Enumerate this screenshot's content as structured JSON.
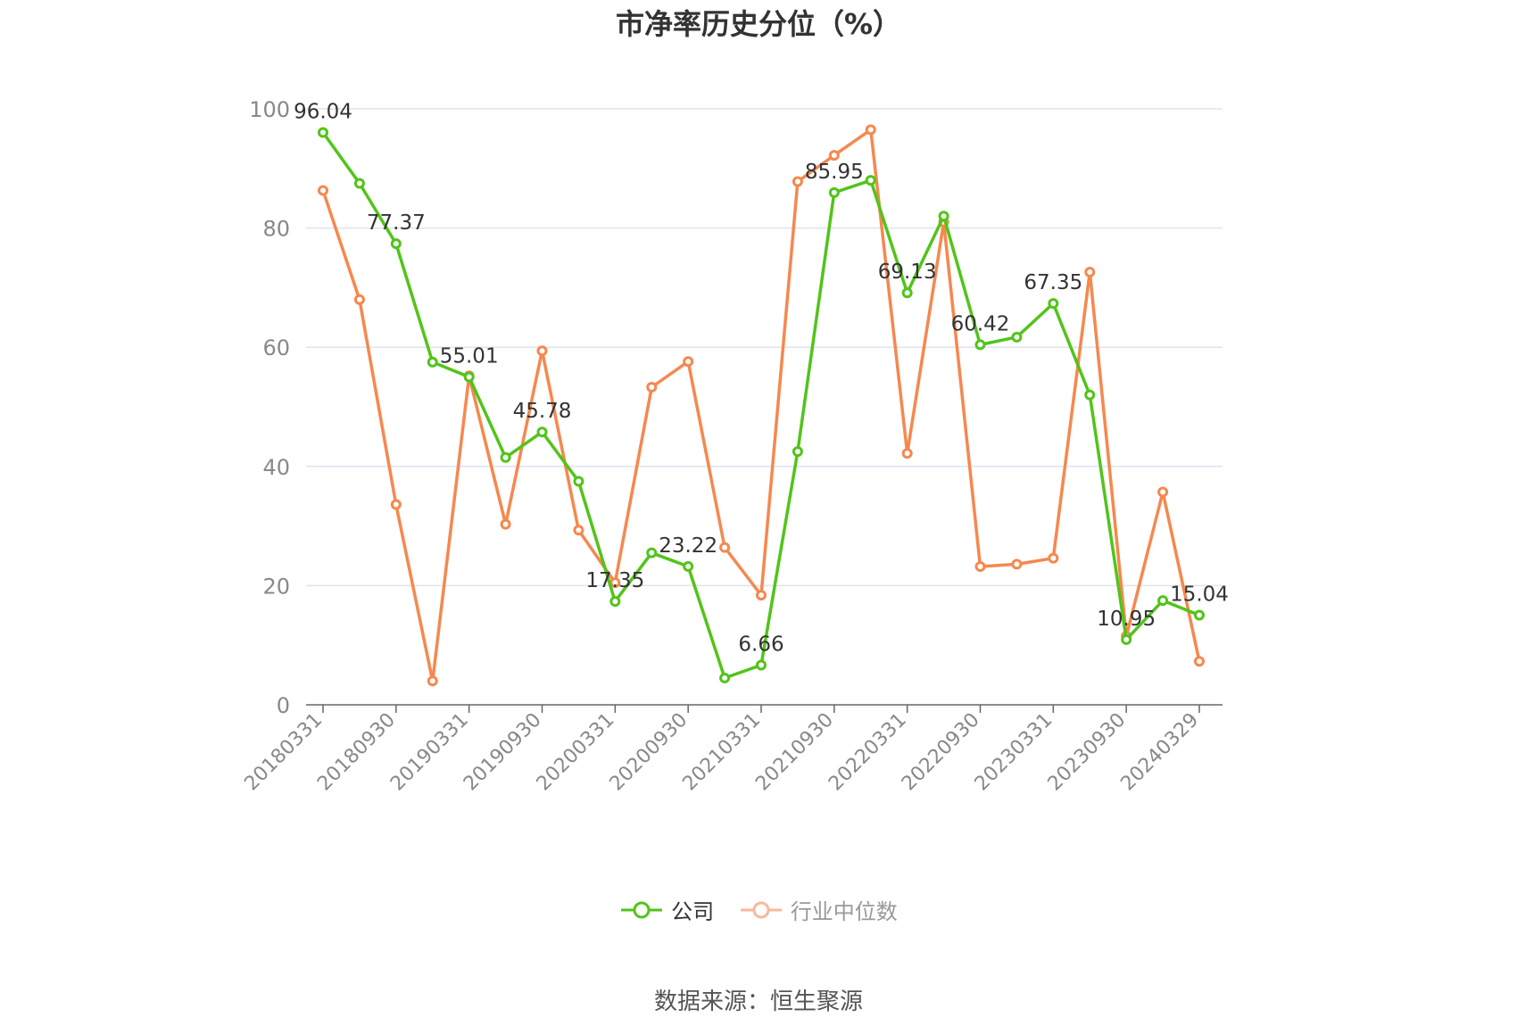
{
  "chart_data": {
    "type": "line",
    "title": "市净率历史分位（%）",
    "source": "数据来源：恒生聚源",
    "ylim": [
      0,
      100
    ],
    "yticks": [
      0,
      20,
      40,
      60,
      80,
      100
    ],
    "xtick_labels": [
      "20180331",
      "20180930",
      "20190331",
      "20190930",
      "20200331",
      "20200930",
      "20210331",
      "20210930",
      "20220331",
      "20220930",
      "20230331",
      "20230930",
      "20240329"
    ],
    "x": [
      "20180331",
      "20180630",
      "20180930",
      "20181231",
      "20190331",
      "20190630",
      "20190930",
      "20191231",
      "20200331",
      "20200630",
      "20200930",
      "20201231",
      "20210331",
      "20210630",
      "20210930",
      "20211231",
      "20220331",
      "20220630",
      "20220930",
      "20221231",
      "20230331",
      "20230630",
      "20230930",
      "20231231",
      "20240329"
    ],
    "series": [
      {
        "name": "公司",
        "color": "#52c41a",
        "values": [
          96.04,
          87.5,
          77.37,
          57.5,
          55.01,
          41.5,
          45.78,
          37.5,
          17.35,
          25.5,
          23.22,
          4.5,
          6.66,
          42.5,
          85.95,
          88.0,
          69.13,
          82.0,
          60.42,
          61.7,
          67.35,
          52.0,
          10.95,
          17.5,
          15.04
        ],
        "labels": {
          "0": "96.04",
          "2": "77.37",
          "4": "55.01",
          "6": "45.78",
          "8": "17.35",
          "10": "23.22",
          "12": "6.66",
          "14": "85.95",
          "16": "69.13",
          "18": "60.42",
          "20": "67.35",
          "22": "10.95",
          "24": "15.04"
        }
      },
      {
        "name": "行业中位数",
        "color": "#f5884f",
        "values": [
          86.3,
          68.0,
          33.6,
          4.0,
          55.2,
          30.3,
          59.4,
          29.3,
          20.5,
          53.3,
          57.6,
          26.4,
          18.4,
          87.8,
          92.2,
          96.5,
          42.2,
          81.0,
          23.2,
          23.6,
          24.6,
          72.6,
          11.5,
          35.7,
          7.3
        ]
      }
    ],
    "grid": true,
    "legend_position": "bottom-center"
  }
}
